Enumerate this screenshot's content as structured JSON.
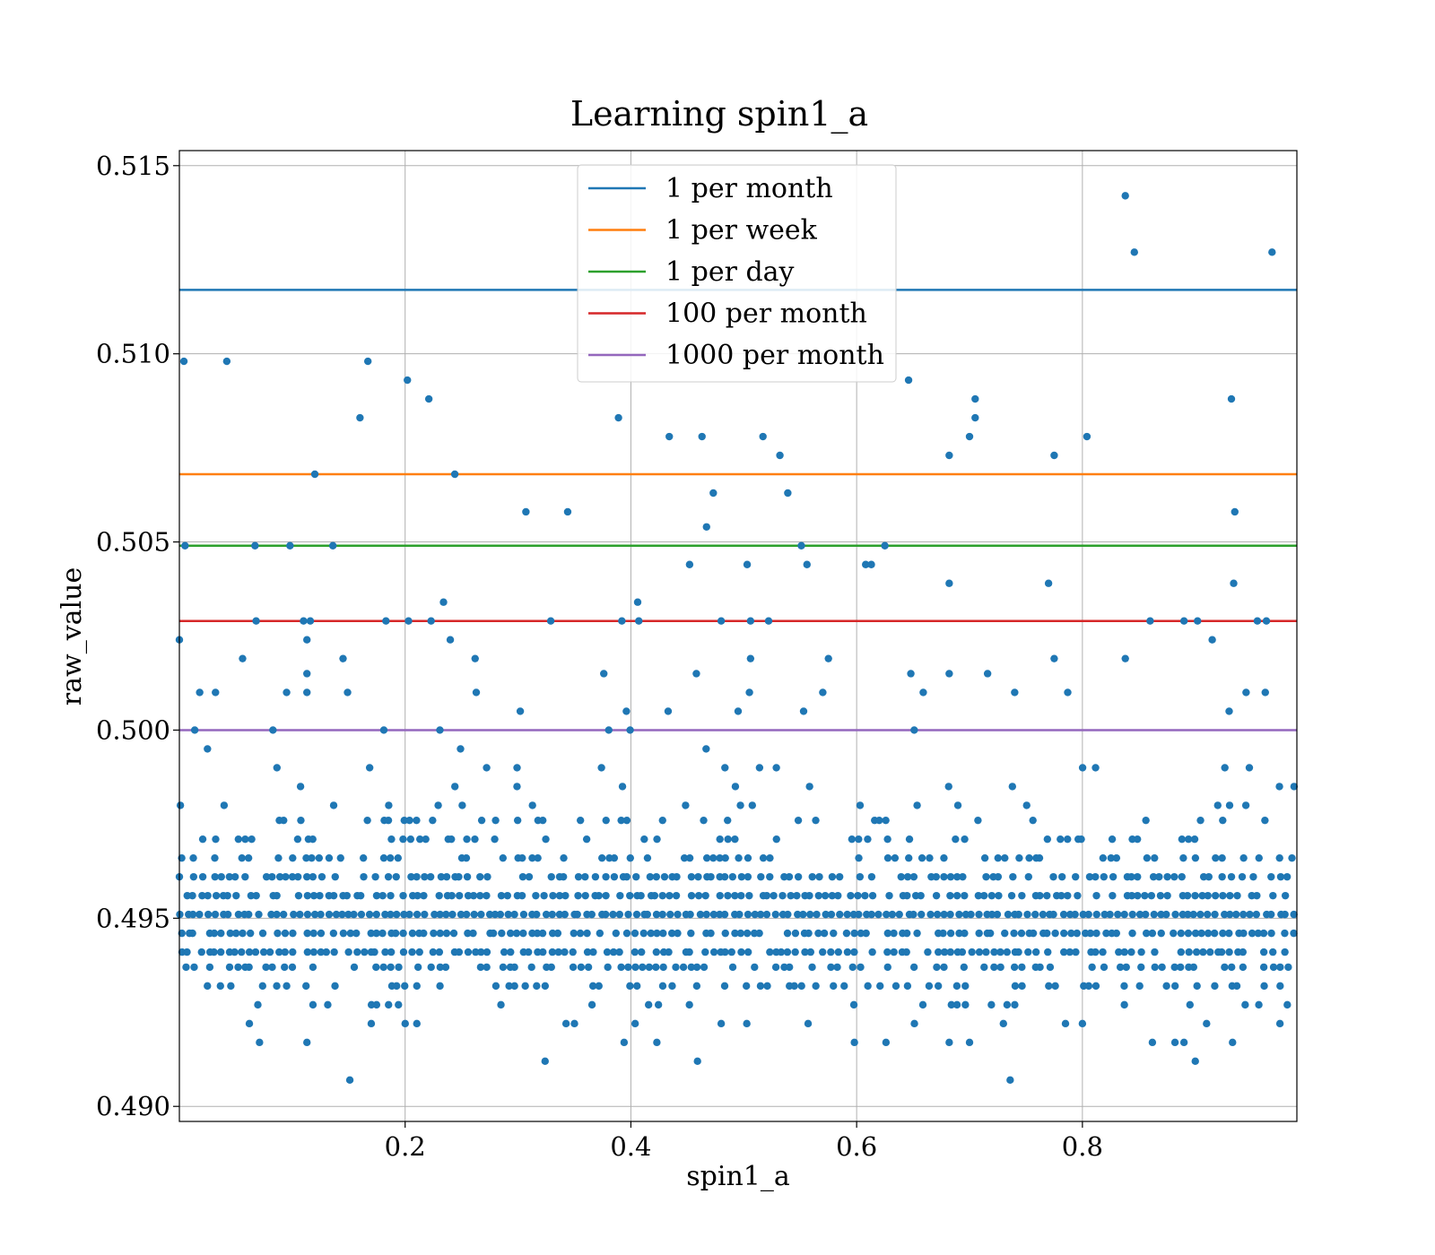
{
  "chart_data": {
    "type": "scatter",
    "title": "Learning spin1_a",
    "xlabel": "spin1_a",
    "ylabel": "raw_value",
    "xlim": [
      0.0,
      0.99
    ],
    "ylim": [
      0.4896,
      0.5154
    ],
    "xticks": [
      {
        "value": 0.2,
        "label": "0.2"
      },
      {
        "value": 0.4,
        "label": "0.4"
      },
      {
        "value": 0.6,
        "label": "0.6"
      },
      {
        "value": 0.8,
        "label": "0.8"
      }
    ],
    "yticks": [
      {
        "value": 0.49,
        "label": "0.490"
      },
      {
        "value": 0.495,
        "label": "0.495"
      },
      {
        "value": 0.5,
        "label": "0.500"
      },
      {
        "value": 0.505,
        "label": "0.505"
      },
      {
        "value": 0.51,
        "label": "0.510"
      },
      {
        "value": 0.515,
        "label": "0.515"
      }
    ],
    "grid": true,
    "legend_position": "top-center",
    "hlines": [
      {
        "name": "1 per month",
        "y": 0.5117,
        "color": "#1f77b4"
      },
      {
        "name": "1 per week",
        "y": 0.5068,
        "color": "#ff7f0e"
      },
      {
        "name": "1 per day",
        "y": 0.5049,
        "color": "#2ca02c"
      },
      {
        "name": "100 per month",
        "y": 0.5029,
        "color": "#d62728"
      },
      {
        "name": "1000 per month",
        "y": 0.5,
        "color": "#9467bd"
      }
    ],
    "point_color": "#1f77b4",
    "y_levels": [
      0.4912,
      0.4917,
      0.4922,
      0.4927,
      0.4932,
      0.4937,
      0.4941,
      0.4946,
      0.4951,
      0.4956,
      0.4961,
      0.4966,
      0.4971,
      0.4976,
      0.498,
      0.4985,
      0.499,
      0.4995,
      0.5
    ],
    "y_level_bands": [
      [
        0.0,
        0.0,
        0.05,
        0.15,
        0.35,
        0.55,
        0.75,
        0.85,
        0.95,
        0.8,
        0.65,
        0.45,
        0.3,
        0.2,
        0.12,
        0.08,
        0.06,
        0.03,
        0.03
      ]
    ],
    "points_sparse": [
      [
        0.004,
        0.5098
      ],
      [
        0.042,
        0.5098
      ],
      [
        0.167,
        0.5098
      ],
      [
        0.202,
        0.5093
      ],
      [
        0.221,
        0.5088
      ],
      [
        0.16,
        0.5083
      ],
      [
        0.389,
        0.5083
      ],
      [
        0.434,
        0.5078
      ],
      [
        0.463,
        0.5078
      ],
      [
        0.517,
        0.5078
      ],
      [
        0.532,
        0.5073
      ],
      [
        0.473,
        0.5063
      ],
      [
        0.539,
        0.5063
      ],
      [
        0.12,
        0.5068
      ],
      [
        0.244,
        0.5068
      ],
      [
        0.307,
        0.5058
      ],
      [
        0.344,
        0.5058
      ],
      [
        0.467,
        0.5054
      ],
      [
        0.452,
        0.5044
      ],
      [
        0.503,
        0.5044
      ],
      [
        0.556,
        0.5044
      ],
      [
        0.608,
        0.5044
      ],
      [
        0.613,
        0.5044
      ],
      [
        0.406,
        0.5034
      ],
      [
        0.234,
        0.5034
      ],
      [
        0.0,
        0.5024
      ],
      [
        0.113,
        0.5024
      ],
      [
        0.24,
        0.5024
      ],
      [
        0.056,
        0.5019
      ],
      [
        0.145,
        0.5019
      ],
      [
        0.262,
        0.5019
      ],
      [
        0.506,
        0.5019
      ],
      [
        0.575,
        0.5019
      ],
      [
        0.113,
        0.5015
      ],
      [
        0.376,
        0.5015
      ],
      [
        0.458,
        0.5015
      ],
      [
        0.018,
        0.501
      ],
      [
        0.032,
        0.501
      ],
      [
        0.095,
        0.501
      ],
      [
        0.113,
        0.501
      ],
      [
        0.149,
        0.501
      ],
      [
        0.263,
        0.501
      ],
      [
        0.505,
        0.501
      ],
      [
        0.57,
        0.501
      ],
      [
        0.302,
        0.5005
      ],
      [
        0.396,
        0.5005
      ],
      [
        0.433,
        0.5005
      ],
      [
        0.495,
        0.5005
      ],
      [
        0.553,
        0.5005
      ],
      [
        0.646,
        0.5093
      ],
      [
        0.705,
        0.5088
      ],
      [
        0.705,
        0.5083
      ],
      [
        0.7,
        0.5078
      ],
      [
        0.682,
        0.5073
      ],
      [
        0.804,
        0.5078
      ],
      [
        0.775,
        0.5073
      ],
      [
        0.838,
        0.5142
      ],
      [
        0.846,
        0.5127
      ],
      [
        0.968,
        0.5127
      ],
      [
        0.932,
        0.5088
      ],
      [
        0.935,
        0.5058
      ],
      [
        0.625,
        0.5049
      ],
      [
        0.682,
        0.5039
      ],
      [
        0.77,
        0.5039
      ],
      [
        0.934,
        0.5039
      ],
      [
        0.86,
        0.5029
      ],
      [
        0.89,
        0.5029
      ],
      [
        0.902,
        0.5029
      ],
      [
        0.955,
        0.5029
      ],
      [
        0.963,
        0.5029
      ],
      [
        0.775,
        0.5019
      ],
      [
        0.838,
        0.5019
      ],
      [
        0.915,
        0.5024
      ],
      [
        0.648,
        0.5015
      ],
      [
        0.682,
        0.5015
      ],
      [
        0.716,
        0.5015
      ],
      [
        0.659,
        0.501
      ],
      [
        0.74,
        0.501
      ],
      [
        0.787,
        0.501
      ],
      [
        0.945,
        0.501
      ],
      [
        0.962,
        0.501
      ],
      [
        0.93,
        0.5005
      ],
      [
        0.067,
        0.5049
      ],
      [
        0.098,
        0.5049
      ],
      [
        0.136,
        0.5049
      ],
      [
        0.551,
        0.5049
      ],
      [
        0.005,
        0.5049
      ],
      [
        0.068,
        0.5029
      ],
      [
        0.11,
        0.5029
      ],
      [
        0.116,
        0.5029
      ],
      [
        0.183,
        0.5029
      ],
      [
        0.203,
        0.5029
      ],
      [
        0.223,
        0.5029
      ],
      [
        0.329,
        0.5029
      ],
      [
        0.392,
        0.5029
      ],
      [
        0.407,
        0.5029
      ],
      [
        0.48,
        0.5029
      ],
      [
        0.506,
        0.5029
      ],
      [
        0.522,
        0.5029
      ],
      [
        0.151,
        0.4907
      ],
      [
        0.324,
        0.4912
      ],
      [
        0.459,
        0.4912
      ],
      [
        0.736,
        0.4907
      ],
      [
        0.9,
        0.4912
      ]
    ],
    "points_dense_note": "dense band of many points between 0.4927 and 0.4995 across the full x range"
  }
}
